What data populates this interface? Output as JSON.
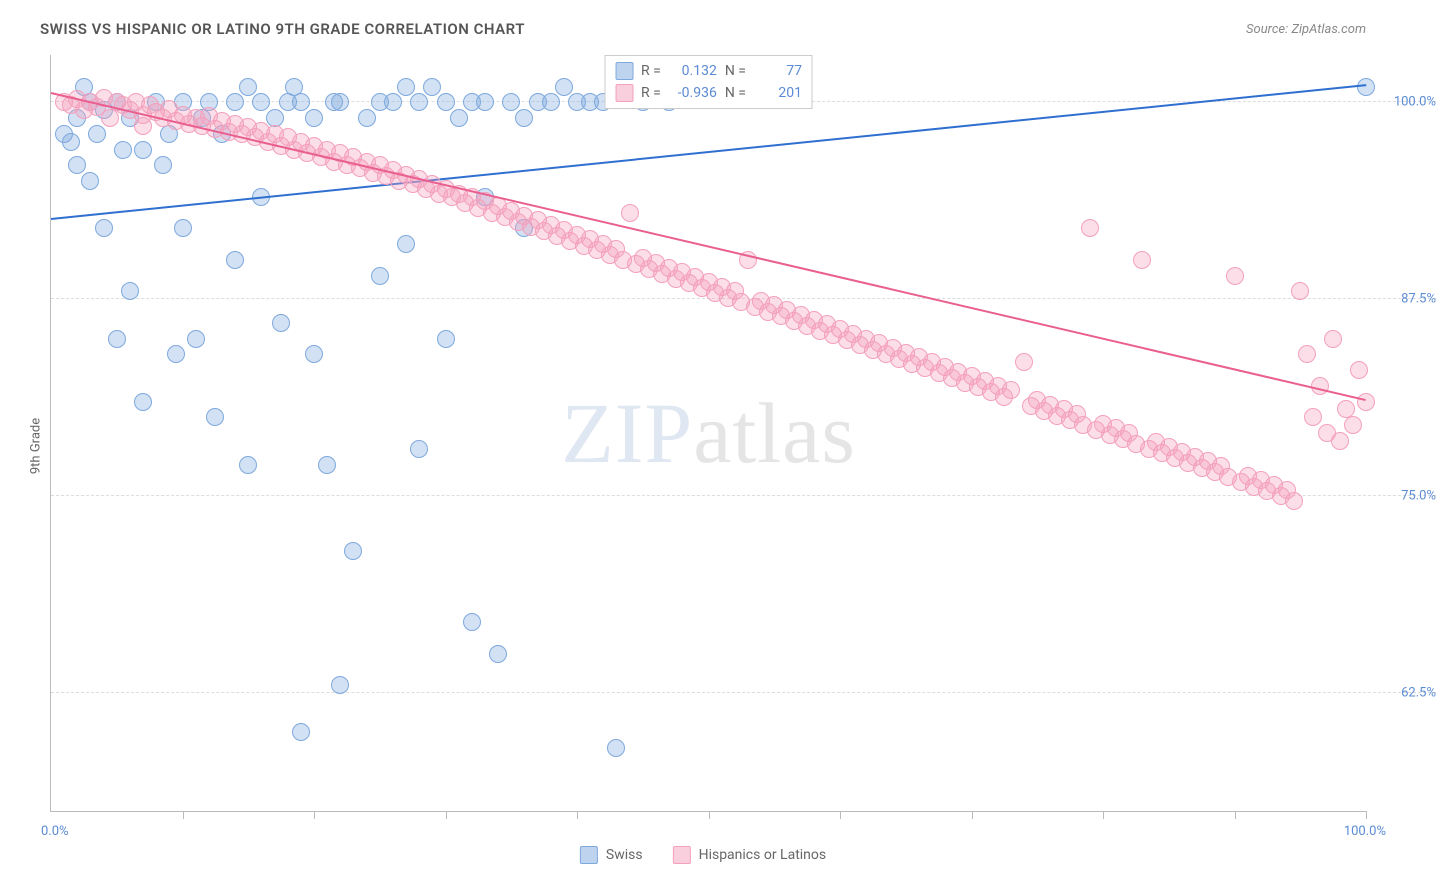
{
  "title": "SWISS VS HISPANIC OR LATINO 9TH GRADE CORRELATION CHART",
  "source_prefix": "Source: ",
  "source_name": "ZipAtlas.com",
  "ylabel": "9th Grade",
  "watermark_a": "ZIP",
  "watermark_b": "atlas",
  "chart": {
    "type": "scatter",
    "xlim": [
      0,
      100
    ],
    "ylim": [
      55,
      103
    ],
    "xlim_labels": [
      "0.0%",
      "100.0%"
    ],
    "xtick_positions": [
      10,
      20,
      30,
      40,
      50,
      60,
      70,
      80,
      90,
      100
    ],
    "ytick_positions": [
      62.5,
      75,
      87.5,
      100
    ],
    "ytick_labels": [
      "62.5%",
      "75.0%",
      "87.5%",
      "100.0%"
    ],
    "grid_color": "#dddddd",
    "background_color": "#ffffff",
    "axis_color": "#bbbbbb",
    "label_color": "#5b8bd4",
    "marker_radius": 9,
    "marker_stroke_width": 1.5,
    "series": [
      {
        "name": "Swiss",
        "fill_color": "rgba(126,169,222,0.35)",
        "stroke_color": "#7ea9de",
        "trend_color": "#2f6fd0",
        "r_label": "R =",
        "r_value": "0.132",
        "n_label": "N =",
        "n_value": "77",
        "trendline": {
          "y_at_x0": 92.5,
          "y_at_x100": 101
        },
        "points": [
          [
            1,
            98
          ],
          [
            1.5,
            97.5
          ],
          [
            2,
            99
          ],
          [
            2,
            96
          ],
          [
            2.5,
            101
          ],
          [
            3,
            100
          ],
          [
            3,
            95
          ],
          [
            3.5,
            98
          ],
          [
            4,
            99.5
          ],
          [
            4,
            92
          ],
          [
            5,
            100
          ],
          [
            5,
            85
          ],
          [
            5.5,
            97
          ],
          [
            6,
            99
          ],
          [
            6,
            88
          ],
          [
            7,
            97
          ],
          [
            7,
            81
          ],
          [
            8,
            100
          ],
          [
            8.5,
            96
          ],
          [
            9,
            98
          ],
          [
            9.5,
            84
          ],
          [
            10,
            100
          ],
          [
            10,
            92
          ],
          [
            11,
            85
          ],
          [
            11.5,
            99
          ],
          [
            12,
            100
          ],
          [
            12.5,
            80
          ],
          [
            13,
            98
          ],
          [
            14,
            100
          ],
          [
            14,
            90
          ],
          [
            15,
            101
          ],
          [
            15,
            77
          ],
          [
            16,
            100
          ],
          [
            16,
            94
          ],
          [
            17,
            99
          ],
          [
            17.5,
            86
          ],
          [
            18,
            100
          ],
          [
            18.5,
            101
          ],
          [
            19,
            100
          ],
          [
            19,
            60
          ],
          [
            20,
            99
          ],
          [
            20,
            84
          ],
          [
            21,
            77
          ],
          [
            21.5,
            100
          ],
          [
            22,
            100
          ],
          [
            22,
            63
          ],
          [
            23,
            71.5
          ],
          [
            24,
            99
          ],
          [
            25,
            100
          ],
          [
            25,
            89
          ],
          [
            26,
            100
          ],
          [
            27,
            101
          ],
          [
            27,
            91
          ],
          [
            28,
            100
          ],
          [
            28,
            78
          ],
          [
            29,
            101
          ],
          [
            30,
            100
          ],
          [
            30,
            85
          ],
          [
            31,
            99
          ],
          [
            32,
            100
          ],
          [
            32,
            67
          ],
          [
            33,
            94
          ],
          [
            33,
            100
          ],
          [
            34,
            65
          ],
          [
            35,
            100
          ],
          [
            36,
            92
          ],
          [
            36,
            99
          ],
          [
            37,
            100
          ],
          [
            38,
            100
          ],
          [
            39,
            101
          ],
          [
            40,
            100
          ],
          [
            41,
            100
          ],
          [
            42,
            100
          ],
          [
            43,
            59
          ],
          [
            45,
            100
          ],
          [
            47,
            100
          ],
          [
            100,
            101
          ]
        ]
      },
      {
        "name": "Hispanics or Latinos",
        "fill_color": "rgba(244,160,188,0.35)",
        "stroke_color": "#f4a0bc",
        "trend_color": "#e95f8f",
        "r_label": "R =",
        "r_value": "-0.936",
        "n_label": "N =",
        "n_value": "201",
        "trendline": {
          "y_at_x0": 100.5,
          "y_at_x100": 81
        },
        "points": [
          [
            1,
            100
          ],
          [
            1.5,
            99.8
          ],
          [
            2,
            100.2
          ],
          [
            2.5,
            99.5
          ],
          [
            3,
            100
          ],
          [
            3.5,
            99.7
          ],
          [
            4,
            100.3
          ],
          [
            4.5,
            99
          ],
          [
            5,
            100
          ],
          [
            5.5,
            99.8
          ],
          [
            6,
            99.5
          ],
          [
            6.5,
            100
          ],
          [
            7,
            99.2
          ],
          [
            7,
            98.5
          ],
          [
            7.5,
            99.8
          ],
          [
            8,
            99.4
          ],
          [
            8.5,
            99
          ],
          [
            9,
            99.6
          ],
          [
            9.5,
            98.8
          ],
          [
            10,
            99.2
          ],
          [
            10.5,
            98.6
          ],
          [
            11,
            99
          ],
          [
            11.5,
            98.5
          ],
          [
            12,
            99.1
          ],
          [
            12.5,
            98.3
          ],
          [
            13,
            98.8
          ],
          [
            13.5,
            98.1
          ],
          [
            14,
            98.6
          ],
          [
            14.5,
            98
          ],
          [
            15,
            98.4
          ],
          [
            15.5,
            97.8
          ],
          [
            16,
            98.2
          ],
          [
            16.5,
            97.5
          ],
          [
            17,
            98
          ],
          [
            17.5,
            97.2
          ],
          [
            18,
            97.8
          ],
          [
            18.5,
            97
          ],
          [
            19,
            97.5
          ],
          [
            19.5,
            96.8
          ],
          [
            20,
            97.2
          ],
          [
            20.5,
            96.5
          ],
          [
            21,
            97
          ],
          [
            21.5,
            96.2
          ],
          [
            22,
            96.8
          ],
          [
            22.5,
            96
          ],
          [
            23,
            96.5
          ],
          [
            23.5,
            95.8
          ],
          [
            24,
            96.2
          ],
          [
            24.5,
            95.5
          ],
          [
            25,
            96
          ],
          [
            25.5,
            95.3
          ],
          [
            26,
            95.7
          ],
          [
            26.5,
            95
          ],
          [
            27,
            95.4
          ],
          [
            27.5,
            94.8
          ],
          [
            28,
            95.1
          ],
          [
            28.5,
            94.5
          ],
          [
            29,
            94.8
          ],
          [
            29.5,
            94.2
          ],
          [
            30,
            94.5
          ],
          [
            30.5,
            94
          ],
          [
            31,
            94.2
          ],
          [
            31.5,
            93.6
          ],
          [
            32,
            94
          ],
          [
            32.5,
            93.3
          ],
          [
            33,
            93.7
          ],
          [
            33.5,
            93
          ],
          [
            34,
            93.4
          ],
          [
            34.5,
            92.7
          ],
          [
            35,
            93.1
          ],
          [
            35.5,
            92.4
          ],
          [
            36,
            92.8
          ],
          [
            36.5,
            92.1
          ],
          [
            37,
            92.5
          ],
          [
            37.5,
            91.8
          ],
          [
            38,
            92.2
          ],
          [
            38.5,
            91.5
          ],
          [
            39,
            91.9
          ],
          [
            39.5,
            91.2
          ],
          [
            40,
            91.6
          ],
          [
            40.5,
            90.9
          ],
          [
            41,
            91.3
          ],
          [
            41.5,
            90.6
          ],
          [
            42,
            91
          ],
          [
            42.5,
            90.3
          ],
          [
            43,
            90.7
          ],
          [
            43.5,
            90
          ],
          [
            44,
            93
          ],
          [
            44.5,
            89.7
          ],
          [
            45,
            90.1
          ],
          [
            45.5,
            89.4
          ],
          [
            46,
            89.8
          ],
          [
            46.5,
            89.1
          ],
          [
            47,
            89.5
          ],
          [
            47.5,
            88.8
          ],
          [
            48,
            89.2
          ],
          [
            48.5,
            88.5
          ],
          [
            49,
            88.9
          ],
          [
            49.5,
            88.2
          ],
          [
            50,
            88.6
          ],
          [
            50.5,
            87.9
          ],
          [
            51,
            88.3
          ],
          [
            51.5,
            87.6
          ],
          [
            52,
            88
          ],
          [
            52.5,
            87.3
          ],
          [
            53,
            90
          ],
          [
            53.5,
            87
          ],
          [
            54,
            87.4
          ],
          [
            54.5,
            86.7
          ],
          [
            55,
            87.1
          ],
          [
            55.5,
            86.4
          ],
          [
            56,
            86.8
          ],
          [
            56.5,
            86.1
          ],
          [
            57,
            86.5
          ],
          [
            57.5,
            85.8
          ],
          [
            58,
            86.2
          ],
          [
            58.5,
            85.5
          ],
          [
            59,
            85.9
          ],
          [
            59.5,
            85.2
          ],
          [
            60,
            85.6
          ],
          [
            60.5,
            84.9
          ],
          [
            61,
            85.3
          ],
          [
            61.5,
            84.6
          ],
          [
            62,
            85
          ],
          [
            62.5,
            84.3
          ],
          [
            63,
            84.7
          ],
          [
            63.5,
            84
          ],
          [
            64,
            84.4
          ],
          [
            64.5,
            83.7
          ],
          [
            65,
            84.1
          ],
          [
            65.5,
            83.4
          ],
          [
            66,
            83.8
          ],
          [
            66.5,
            83.1
          ],
          [
            67,
            83.5
          ],
          [
            67.5,
            82.8
          ],
          [
            68,
            83.2
          ],
          [
            68.5,
            82.5
          ],
          [
            69,
            82.9
          ],
          [
            69.5,
            82.2
          ],
          [
            70,
            82.6
          ],
          [
            70.5,
            81.9
          ],
          [
            71,
            82.3
          ],
          [
            71.5,
            81.6
          ],
          [
            72,
            82
          ],
          [
            72.5,
            81.3
          ],
          [
            73,
            81.7
          ],
          [
            74,
            83.5
          ],
          [
            74.5,
            80.7
          ],
          [
            75,
            81.1
          ],
          [
            75.5,
            80.4
          ],
          [
            76,
            80.8
          ],
          [
            76.5,
            80.1
          ],
          [
            77,
            80.5
          ],
          [
            77.5,
            79.8
          ],
          [
            78,
            80.2
          ],
          [
            78.5,
            79.5
          ],
          [
            79,
            92
          ],
          [
            79.5,
            79.2
          ],
          [
            80,
            79.6
          ],
          [
            80.5,
            78.9
          ],
          [
            81,
            79.3
          ],
          [
            81.5,
            78.6
          ],
          [
            82,
            79
          ],
          [
            82.5,
            78.3
          ],
          [
            83,
            90
          ],
          [
            83.5,
            78
          ],
          [
            84,
            78.4
          ],
          [
            84.5,
            77.7
          ],
          [
            85,
            78.1
          ],
          [
            85.5,
            77.4
          ],
          [
            86,
            77.8
          ],
          [
            86.5,
            77.1
          ],
          [
            87,
            77.5
          ],
          [
            87.5,
            76.8
          ],
          [
            88,
            77.2
          ],
          [
            88.5,
            76.5
          ],
          [
            89,
            76.9
          ],
          [
            89.5,
            76.2
          ],
          [
            90,
            89
          ],
          [
            90.5,
            75.9
          ],
          [
            91,
            76.3
          ],
          [
            91.5,
            75.6
          ],
          [
            92,
            76
          ],
          [
            92.5,
            75.3
          ],
          [
            93,
            75.7
          ],
          [
            93.5,
            75
          ],
          [
            94,
            75.4
          ],
          [
            94.5,
            74.7
          ],
          [
            95,
            88
          ],
          [
            95.5,
            84
          ],
          [
            96,
            80
          ],
          [
            96.5,
            82
          ],
          [
            97,
            79
          ],
          [
            97.5,
            85
          ],
          [
            98,
            78.5
          ],
          [
            98.5,
            80.5
          ],
          [
            99,
            79.5
          ],
          [
            99.5,
            83
          ],
          [
            100,
            81
          ]
        ]
      }
    ]
  },
  "legend_top": [
    {
      "swatch_fill": "rgba(126,169,222,0.5)",
      "swatch_stroke": "#7ea9de"
    },
    {
      "swatch_fill": "rgba(244,160,188,0.5)",
      "swatch_stroke": "#f4a0bc"
    }
  ],
  "legend_bottom": [
    {
      "label": "Swiss",
      "swatch_fill": "rgba(126,169,222,0.5)",
      "swatch_stroke": "#7ea9de"
    },
    {
      "label": "Hispanics or Latinos",
      "swatch_fill": "rgba(244,160,188,0.5)",
      "swatch_stroke": "#f4a0bc"
    }
  ]
}
